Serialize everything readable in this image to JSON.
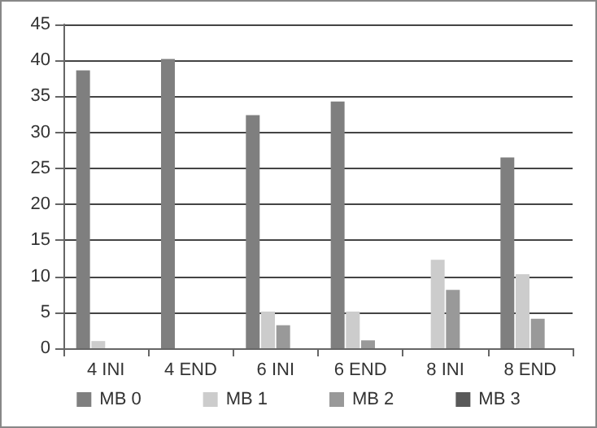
{
  "chart_data": {
    "type": "bar",
    "categories": [
      "4 INI",
      "4 END",
      "6 INI",
      "6 END",
      "8 INI",
      "8 END"
    ],
    "series": [
      {
        "name": "MB 0",
        "color": "#7f7f7f",
        "values": [
          38.6,
          40.2,
          32.4,
          34.3,
          0,
          26.5
        ]
      },
      {
        "name": "MB 1",
        "color": "#cccccc",
        "values": [
          1,
          0,
          5.1,
          5.1,
          12.3,
          10.3
        ]
      },
      {
        "name": "MB 2",
        "color": "#999999",
        "values": [
          0,
          0,
          3.2,
          1.1,
          8.1,
          4.1
        ]
      },
      {
        "name": "MB 3",
        "color": "#595959",
        "values": [
          0,
          0,
          0,
          0,
          0,
          0
        ]
      }
    ],
    "ylim": [
      0,
      45
    ],
    "yticks": [
      0,
      5,
      10,
      15,
      20,
      25,
      30,
      35,
      40,
      45
    ],
    "grid": "y",
    "legend": "bottom"
  }
}
